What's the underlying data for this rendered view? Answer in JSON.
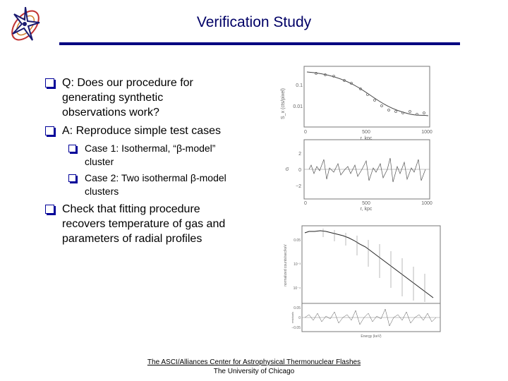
{
  "slide": {
    "title": "Verification Study"
  },
  "bullets": {
    "q_line1": "Q: Does our procedure for",
    "q_line2": "generating synthetic",
    "q_line3": "observations work?",
    "a_line1": "A: Reproduce simple test cases",
    "case1_line1": "Case 1: Isothermal, “β-model”",
    "case1_line2": "cluster",
    "case2_line1": "Case 2: Two isothermal β-model",
    "case2_line2": "clusters",
    "check_line1": "Check that fitting procedure",
    "check_line2": "recovers temperature of gas and",
    "check_line3": "parameters of radial profiles"
  },
  "plot_top": {
    "ylabel": "S_x (cts/pixel)",
    "ytick_1": "0.1",
    "ytick_2": "0.01",
    "xtick_0": "0",
    "xtick_500": "500",
    "xtick_1000": "1000",
    "xlabel": "r, kpc"
  },
  "plot_resid": {
    "ylabel": "σ",
    "ytick_p2": "2",
    "ytick_0": "0",
    "ytick_m2": "−2",
    "xtick_0": "0",
    "xtick_500": "500",
    "xtick_1000": "1000",
    "xlabel": "r, kpc"
  },
  "plot_spectrum": {
    "ylabel": "normalized counts/sec/keV",
    "ytick_a": "0.05",
    "ytick_b": "10⁻³",
    "ytick_c": "10⁻⁴",
    "resid_label": "residuals",
    "rtick_a": "0.05",
    "rtick_b": "0",
    "rtick_c": "−0.05",
    "xlabel": "Energy (keV)"
  },
  "footer": {
    "line1": "The ASCI/Alliances Center for Astrophysical Thermonuclear Flashes",
    "line2": "The University of Chicago"
  },
  "colors": {
    "title": "#000066",
    "rule": "#000080",
    "bullet": "#000099"
  },
  "icons": {
    "logo": "flash-center-logo-icon",
    "bullet": "checkbox-bullet-icon"
  }
}
